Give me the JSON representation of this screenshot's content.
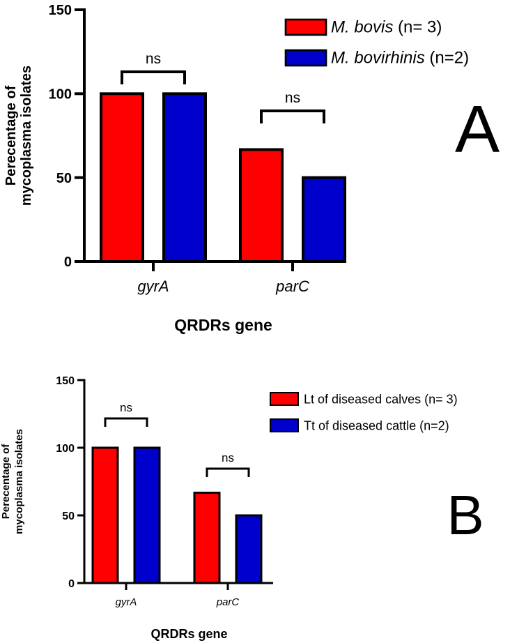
{
  "chart_data": [
    {
      "type": "bar",
      "panel_label": "A",
      "ylabel_lines": [
        "Perecentage of",
        "mycoplasma isolates"
      ],
      "xlabel": "QRDRs gene",
      "categories": [
        "gyrA",
        "parC"
      ],
      "ylim": [
        0,
        150
      ],
      "yticks": [
        0,
        50,
        100,
        150
      ],
      "series": [
        {
          "name": "M. bovis",
          "name_suffix": " (n= 3)",
          "color": "#ff0000",
          "values": [
            100,
            66.7
          ]
        },
        {
          "name": "M. bovirhinis",
          "name_suffix": " (n=2)",
          "color": "#0000cc",
          "values": [
            100,
            50
          ]
        }
      ],
      "significance": [
        "ns",
        "ns"
      ],
      "legend_position": "top-right",
      "grid": false
    },
    {
      "type": "bar",
      "panel_label": "B",
      "ylabel_lines": [
        "Perecentage of",
        "mycoplasma isolates"
      ],
      "xlabel": "QRDRs gene",
      "categories": [
        "gyrA",
        "parC"
      ],
      "ylim": [
        0,
        150
      ],
      "yticks": [
        0,
        50,
        100,
        150
      ],
      "series": [
        {
          "name": "Lt of diseased calves (n= 3)",
          "name_suffix": "",
          "color": "#ff0000",
          "values": [
            100,
            66.7
          ]
        },
        {
          "name": "Tt of diseased cattle  (n=2)",
          "name_suffix": "",
          "color": "#0000cc",
          "values": [
            100,
            50
          ]
        }
      ],
      "significance": [
        "ns",
        "ns"
      ],
      "legend_position": "top-right",
      "grid": false
    }
  ]
}
